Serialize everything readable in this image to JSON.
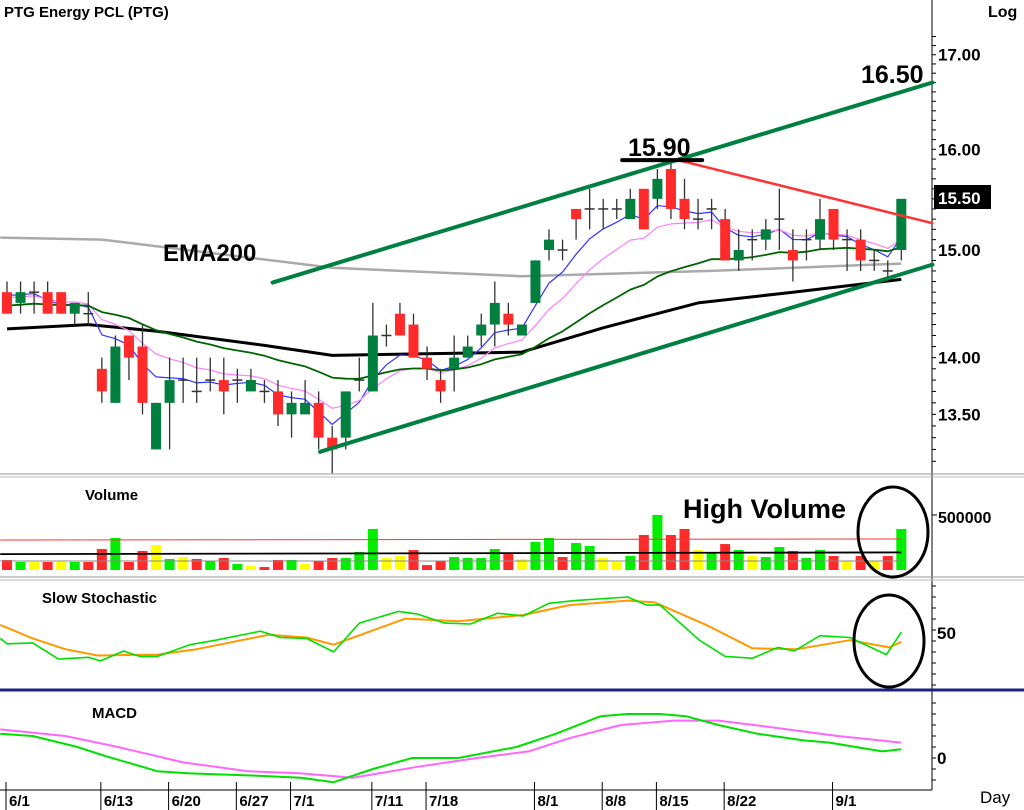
{
  "chart_data": {
    "type": "candlestick",
    "title": "PTG  Energy  PCL  (PTG)",
    "scale_label": "Log",
    "x_axis_label": "Day",
    "price_axis_ticks": [
      "17.00",
      "16.00",
      "15.00",
      "14.00",
      "13.50"
    ],
    "price_axis_values": [
      17.0,
      16.0,
      15.0,
      14.0,
      13.5
    ],
    "last_price": "15.50",
    "last_price_value": 15.5,
    "date_labels": [
      {
        "label": "6/1",
        "index": 0
      },
      {
        "label": "6/13",
        "index": 7
      },
      {
        "label": "6/20",
        "index": 12
      },
      {
        "label": "6/27",
        "index": 17
      },
      {
        "label": "7/1",
        "index": 21
      },
      {
        "label": "7/11",
        "index": 27
      },
      {
        "label": "7/18",
        "index": 31
      },
      {
        "label": "8/1",
        "index": 39
      },
      {
        "label": "8/8",
        "index": 44
      },
      {
        "label": "8/15",
        "index": 48
      },
      {
        "label": "8/22",
        "index": 53
      },
      {
        "label": "9/1",
        "index": 61
      }
    ],
    "ohlc": [
      [
        14.6,
        14.7,
        14.4,
        14.4
      ],
      [
        14.5,
        14.7,
        14.4,
        14.6
      ],
      [
        14.6,
        14.7,
        14.4,
        14.6
      ],
      [
        14.6,
        14.7,
        14.4,
        14.4
      ],
      [
        14.6,
        14.6,
        14.4,
        14.4
      ],
      [
        14.4,
        14.5,
        14.3,
        14.5
      ],
      [
        14.4,
        14.6,
        14.3,
        14.4
      ],
      [
        13.9,
        14.0,
        13.6,
        13.7
      ],
      [
        13.6,
        14.2,
        13.6,
        14.1
      ],
      [
        14.2,
        14.2,
        13.8,
        14.0
      ],
      [
        14.1,
        14.3,
        13.5,
        13.6
      ],
      [
        13.2,
        13.6,
        13.2,
        13.6
      ],
      [
        13.6,
        14.0,
        13.2,
        13.8
      ],
      [
        13.8,
        14.0,
        13.6,
        13.8
      ],
      [
        13.7,
        14.0,
        13.6,
        13.7
      ],
      [
        13.8,
        14.0,
        13.7,
        13.8
      ],
      [
        13.8,
        14.0,
        13.5,
        13.7
      ],
      [
        13.8,
        13.9,
        13.6,
        13.8
      ],
      [
        13.7,
        13.9,
        13.7,
        13.8
      ],
      [
        13.7,
        13.8,
        13.6,
        13.7
      ],
      [
        13.7,
        13.8,
        13.4,
        13.5
      ],
      [
        13.5,
        13.7,
        13.3,
        13.6
      ],
      [
        13.5,
        13.8,
        13.5,
        13.6
      ],
      [
        13.6,
        13.7,
        13.2,
        13.3
      ],
      [
        13.3,
        13.4,
        13.0,
        13.2
      ],
      [
        13.3,
        13.7,
        13.2,
        13.7
      ],
      [
        13.8,
        14.0,
        13.7,
        13.8
      ],
      [
        13.7,
        14.5,
        13.7,
        14.2
      ],
      [
        14.2,
        14.3,
        14.1,
        14.2
      ],
      [
        14.4,
        14.5,
        14.2,
        14.2
      ],
      [
        14.3,
        14.4,
        14.0,
        14.0
      ],
      [
        14.0,
        14.1,
        13.8,
        13.9
      ],
      [
        13.8,
        13.9,
        13.6,
        13.7
      ],
      [
        13.9,
        14.2,
        13.7,
        14.0
      ],
      [
        14.0,
        14.2,
        14.0,
        14.1
      ],
      [
        14.2,
        14.4,
        14.1,
        14.3
      ],
      [
        14.3,
        14.7,
        14.1,
        14.5
      ],
      [
        14.4,
        14.5,
        14.2,
        14.3
      ],
      [
        14.2,
        14.3,
        14.2,
        14.3
      ],
      [
        14.5,
        14.9,
        14.5,
        14.9
      ],
      [
        15.0,
        15.2,
        14.9,
        15.1
      ],
      [
        15.0,
        15.1,
        14.9,
        15.0
      ],
      [
        15.4,
        15.4,
        15.1,
        15.3
      ],
      [
        15.4,
        15.6,
        15.2,
        15.4
      ],
      [
        15.4,
        15.5,
        15.2,
        15.4
      ],
      [
        15.4,
        15.5,
        15.3,
        15.4
      ],
      [
        15.3,
        15.6,
        15.3,
        15.5
      ],
      [
        15.6,
        15.6,
        15.2,
        15.2
      ],
      [
        15.5,
        15.8,
        15.4,
        15.7
      ],
      [
        15.8,
        15.9,
        15.3,
        15.4
      ],
      [
        15.5,
        15.7,
        15.2,
        15.3
      ],
      [
        15.3,
        15.5,
        15.2,
        15.3
      ],
      [
        15.4,
        15.5,
        15.2,
        15.4
      ],
      [
        15.3,
        15.4,
        14.9,
        14.9
      ],
      [
        14.9,
        15.2,
        14.8,
        15.0
      ],
      [
        15.1,
        15.2,
        14.9,
        15.1
      ],
      [
        15.1,
        15.3,
        15.0,
        15.2
      ],
      [
        15.3,
        15.6,
        15.0,
        15.3
      ],
      [
        15.0,
        15.2,
        14.7,
        14.9
      ],
      [
        15.1,
        15.2,
        14.9,
        15.1
      ],
      [
        15.1,
        15.5,
        15.0,
        15.3
      ],
      [
        15.4,
        15.4,
        15.0,
        15.1
      ],
      [
        15.1,
        15.2,
        14.8,
        15.1
      ],
      [
        15.1,
        15.2,
        14.8,
        14.9
      ],
      [
        14.9,
        15.0,
        14.8,
        14.9
      ],
      [
        14.8,
        14.9,
        14.7,
        14.8
      ],
      [
        15.0,
        15.5,
        14.9,
        15.5
      ]
    ],
    "ema_short": [
      {
        "name": "EMA5",
        "period": 5,
        "seed": 14.65,
        "color": "#3333ff"
      },
      {
        "name": "EMA10",
        "period": 10,
        "seed": 14.58,
        "color": "#ff80ff"
      },
      {
        "name": "EMA25",
        "period": 25,
        "seed": 14.48,
        "color": "#006400"
      }
    ],
    "ema_long": {
      "color": "#000000",
      "points": [
        [
          0,
          14.26
        ],
        [
          6,
          14.3
        ],
        [
          11,
          14.24
        ],
        [
          19,
          14.11
        ],
        [
          24,
          14.02
        ],
        [
          38,
          14.05
        ],
        [
          44,
          14.27
        ],
        [
          51,
          14.5
        ],
        [
          58,
          14.6
        ],
        [
          66,
          14.72
        ]
      ]
    },
    "ema200": {
      "label": "EMA200",
      "color": "#aaaaaa",
      "points": [
        [
          -0.5,
          15.12
        ],
        [
          7,
          15.1
        ],
        [
          24,
          14.83
        ],
        [
          38,
          14.75
        ],
        [
          52,
          14.8
        ],
        [
          66,
          14.87
        ]
      ]
    },
    "trendlines": [
      {
        "name": "upper-channel",
        "color": "#008040",
        "from": [
          19.6,
          14.69
        ],
        "to": [
          68.3,
          16.7
        ]
      },
      {
        "name": "lower-channel",
        "color": "#008040",
        "from": [
          23.1,
          13.18
        ],
        "to": [
          68.3,
          14.86
        ]
      },
      {
        "name": "resistance",
        "color": "#ff3333",
        "from": [
          49.5,
          15.89
        ],
        "to": [
          68.3,
          15.26
        ]
      },
      {
        "name": "peak-marker",
        "color": "#000000",
        "from": [
          45.4,
          15.89
        ],
        "to": [
          51.3,
          15.89
        ]
      }
    ],
    "annotations": {
      "peak": "15.90",
      "target": "16.50",
      "high_volume": "High Volume"
    },
    "volume": {
      "label": "Volume",
      "axis_tick": "500000",
      "axis_value": 500000,
      "values": [
        91000,
        73000,
        73000,
        73000,
        73000,
        73000,
        73000,
        191000,
        291000,
        73000,
        173000,
        227000,
        100000,
        118000,
        100000,
        82000,
        109000,
        55000,
        36000,
        27000,
        91000,
        91000,
        55000,
        82000,
        109000,
        109000,
        164000,
        373000,
        109000,
        127000,
        182000,
        45000,
        82000,
        118000,
        109000,
        109000,
        191000,
        145000,
        100000,
        255000,
        291000,
        118000,
        245000,
        218000,
        109000,
        73000,
        127000,
        318000,
        500000,
        318000,
        373000,
        182000,
        155000,
        236000,
        182000,
        127000,
        118000,
        209000,
        173000,
        109000,
        182000,
        127000,
        82000,
        127000,
        82000,
        127000,
        373000
      ],
      "colors": [
        "r",
        "g",
        "y",
        "r",
        "y",
        "g",
        "r",
        "r",
        "g",
        "r",
        "r",
        "y",
        "g",
        "y",
        "r",
        "g",
        "r",
        "g",
        "y",
        "r",
        "r",
        "g",
        "y",
        "r",
        "r",
        "g",
        "g",
        "g",
        "y",
        "y",
        "r",
        "r",
        "r",
        "g",
        "g",
        "g",
        "g",
        "r",
        "y",
        "g",
        "g",
        "r",
        "g",
        "g",
        "y",
        "y",
        "g",
        "r",
        "g",
        "r",
        "r",
        "y",
        "g",
        "r",
        "g",
        "y",
        "g",
        "g",
        "r",
        "g",
        "g",
        "r",
        "y",
        "r",
        "y",
        "r",
        "g"
      ],
      "palette": {
        "r": "#ff2a2a",
        "g": "#00ee00",
        "y": "#ffff00"
      },
      "ma_lines": [
        {
          "color": "#ff3333",
          "points": [
            [
              0,
              273000
            ],
            [
              66,
              282000
            ]
          ]
        },
        {
          "color": "#000000",
          "points": [
            [
              0,
              145000
            ],
            [
              66,
              160000
            ]
          ]
        },
        {
          "color": "#888888",
          "points": [
            [
              0,
              82000
            ],
            [
              66,
              82000
            ]
          ]
        }
      ]
    },
    "stochastic": {
      "label": "Slow  Stochastic",
      "axis_tick": "50",
      "axis_value": 50,
      "k": {
        "color": "#00e000",
        "points": [
          [
            -0.5,
            44
          ],
          [
            0,
            38
          ],
          [
            1.9,
            39
          ],
          [
            3.8,
            21
          ],
          [
            6,
            23
          ],
          [
            6.9,
            19
          ],
          [
            8.6,
            30
          ],
          [
            9.8,
            24
          ],
          [
            11.1,
            24
          ],
          [
            13.5,
            37
          ],
          [
            15.4,
            42
          ],
          [
            18.7,
            52
          ],
          [
            20.2,
            45
          ],
          [
            22.1,
            44
          ],
          [
            24.1,
            29
          ],
          [
            26,
            61
          ],
          [
            28.9,
            74
          ],
          [
            30.3,
            71
          ],
          [
            32.3,
            61
          ],
          [
            34.2,
            60
          ],
          [
            36.2,
            72
          ],
          [
            38.1,
            69
          ],
          [
            40,
            83
          ],
          [
            41.9,
            86
          ],
          [
            45.8,
            90
          ],
          [
            47.2,
            81
          ],
          [
            48.2,
            81
          ],
          [
            51.1,
            42
          ],
          [
            53,
            24
          ],
          [
            55,
            22
          ],
          [
            56.9,
            34
          ],
          [
            58.1,
            30
          ],
          [
            60,
            47
          ],
          [
            62.2,
            45
          ],
          [
            64.9,
            26
          ],
          [
            66,
            51
          ]
        ]
      },
      "d": {
        "color": "#ff9900",
        "points": [
          [
            -0.5,
            59
          ],
          [
            1.9,
            44
          ],
          [
            4.3,
            32
          ],
          [
            6.7,
            25
          ],
          [
            11.1,
            26
          ],
          [
            14,
            32
          ],
          [
            19.3,
            48
          ],
          [
            22.1,
            45
          ],
          [
            24.1,
            37
          ],
          [
            29.4,
            66
          ],
          [
            33.3,
            63
          ],
          [
            38.1,
            70
          ],
          [
            41.5,
            81
          ],
          [
            45.8,
            86
          ],
          [
            47.8,
            84
          ],
          [
            51.6,
            59
          ],
          [
            55,
            33
          ],
          [
            58.3,
            32
          ],
          [
            62.2,
            42
          ],
          [
            65.1,
            34
          ],
          [
            66,
            40
          ]
        ]
      }
    },
    "macd": {
      "label": "MACD",
      "axis_tick": "0",
      "axis_value": 0,
      "macd_line": {
        "color": "#00e000",
        "points": [
          [
            -0.5,
            0.11
          ],
          [
            1.9,
            0.1
          ],
          [
            5.2,
            0.05
          ],
          [
            7.2,
            0.01
          ],
          [
            11.1,
            -0.06
          ],
          [
            13.5,
            -0.07
          ],
          [
            18.3,
            -0.08
          ],
          [
            21.7,
            -0.09
          ],
          [
            24.1,
            -0.11
          ],
          [
            27,
            -0.05
          ],
          [
            29.9,
            0.0
          ],
          [
            33.3,
            0.0
          ],
          [
            37.6,
            0.05
          ],
          [
            40.5,
            0.11
          ],
          [
            43.8,
            0.19
          ],
          [
            45.8,
            0.2
          ],
          [
            48.2,
            0.2
          ],
          [
            50.1,
            0.19
          ],
          [
            52.5,
            0.15
          ],
          [
            55.4,
            0.11
          ],
          [
            58.8,
            0.08
          ],
          [
            60.7,
            0.07
          ],
          [
            64.6,
            0.03
          ],
          [
            66,
            0.04
          ]
        ]
      },
      "signal_line": {
        "color": "#ff66ff",
        "points": [
          [
            -0.5,
            0.13
          ],
          [
            4.3,
            0.1
          ],
          [
            8.2,
            0.05
          ],
          [
            13,
            -0.02
          ],
          [
            17.8,
            -0.06
          ],
          [
            21.7,
            -0.07
          ],
          [
            25.5,
            -0.09
          ],
          [
            30.3,
            -0.04
          ],
          [
            34.7,
            0.0
          ],
          [
            38.5,
            0.03
          ],
          [
            41.5,
            0.09
          ],
          [
            45.3,
            0.15
          ],
          [
            49.2,
            0.17
          ],
          [
            52.5,
            0.17
          ],
          [
            56.4,
            0.14
          ],
          [
            61.3,
            0.1
          ],
          [
            66,
            0.07
          ]
        ]
      }
    }
  }
}
